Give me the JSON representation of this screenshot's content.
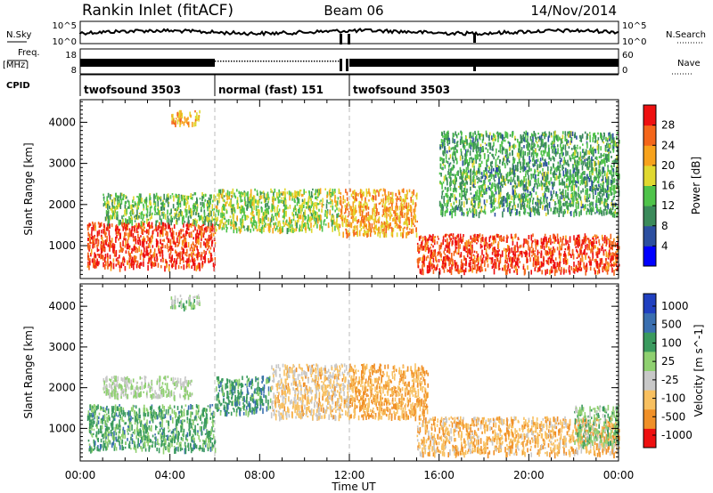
{
  "header": {
    "station": "Rankin Inlet (fitACF)",
    "beam": "Beam 06",
    "date": "14/Nov/2014"
  },
  "strips": {
    "nsky_label": "N.Sky",
    "nsky_ticks": [
      "10^5",
      "10^0"
    ],
    "nsearch_label": "N.Search",
    "nsearch_ticks": [
      "10^5",
      "10^0"
    ],
    "freq_label": "Freq.",
    "freq_unit": "[MHz]",
    "freq_ticks": [
      "18",
      "8"
    ],
    "nave_label": "Nave",
    "nave_ticks": [
      "60",
      "0"
    ],
    "cpid_label": "CPID",
    "cpid_segments": [
      {
        "label": "twofsound 3503",
        "start_hour": 0,
        "end_hour": 6
      },
      {
        "label": "normal (fast) 151",
        "start_hour": 6,
        "end_hour": 12
      },
      {
        "label": "twofsound 3503",
        "start_hour": 12,
        "end_hour": 24
      }
    ]
  },
  "chart_data": [
    {
      "type": "heatmap",
      "title": "",
      "xlabel": "Time UT",
      "ylabel": "Slant Range [km]",
      "xlim": [
        0,
        24
      ],
      "ylim": [
        200,
        4550
      ],
      "x_ticks": [
        "00:00",
        "04:00",
        "08:00",
        "12:00",
        "16:00",
        "20:00",
        "00:00"
      ],
      "y_ticks": [
        1000,
        2000,
        3000,
        4000
      ],
      "colorbar_label": "Power [dB]",
      "colorbar_ticks": [
        4,
        8,
        12,
        16,
        20,
        24,
        28
      ],
      "colorbar_range": [
        0,
        32
      ],
      "colors": [
        "#0000ff",
        "#2c4fa0",
        "#3b8a5a",
        "#4fc34a",
        "#e0d830",
        "#f7a21c",
        "#f4661a",
        "#ee1010"
      ],
      "regions": [
        {
          "t": [
            0.3,
            6.0
          ],
          "r": [
            500,
            1600
          ],
          "value": 28
        },
        {
          "t": [
            1.0,
            6.0
          ],
          "r": [
            1600,
            2300
          ],
          "value": 14
        },
        {
          "t": [
            4.0,
            5.3
          ],
          "r": [
            4000,
            4300
          ],
          "value": 22
        },
        {
          "t": [
            6.0,
            11.5
          ],
          "r": [
            1400,
            2400
          ],
          "value": 16
        },
        {
          "t": [
            11.5,
            15.0
          ],
          "r": [
            1300,
            2400
          ],
          "value": 22
        },
        {
          "t": [
            15.0,
            24.0
          ],
          "r": [
            400,
            1300
          ],
          "value": 28
        },
        {
          "t": [
            16.0,
            24.0
          ],
          "r": [
            1800,
            3800
          ],
          "value": 12
        }
      ]
    },
    {
      "type": "heatmap",
      "title": "",
      "xlabel": "Time UT",
      "ylabel": "Slant Range [km]",
      "xlim": [
        0,
        24
      ],
      "ylim": [
        200,
        4550
      ],
      "x_ticks": [
        "00:00",
        "04:00",
        "08:00",
        "12:00",
        "16:00",
        "20:00",
        "00:00"
      ],
      "y_ticks": [
        1000,
        2000,
        3000,
        4000
      ],
      "colorbar_label": "Velocity [m s^-1]",
      "colorbar_ticks": [
        "1000",
        "500",
        "100",
        "25",
        "-25",
        "-100",
        "-500",
        "-1000"
      ],
      "colorbar_range": [
        -1000,
        1000
      ],
      "colors": [
        "#2040c0",
        "#3a6fb0",
        "#3a9a5e",
        "#8fd070",
        "#c8c8c8",
        "#f8c060",
        "#f09028",
        "#ee1010"
      ],
      "regions": [
        {
          "t": [
            0.3,
            6.0
          ],
          "r": [
            500,
            1600
          ],
          "value": 300
        },
        {
          "t": [
            1.0,
            5.0
          ],
          "r": [
            1800,
            2300
          ],
          "value": 0
        },
        {
          "t": [
            4.0,
            5.3
          ],
          "r": [
            4000,
            4300
          ],
          "value": 60
        },
        {
          "t": [
            6.0,
            8.5
          ],
          "r": [
            1400,
            2300
          ],
          "value": 400
        },
        {
          "t": [
            8.5,
            12.0
          ],
          "r": [
            1300,
            2600
          ],
          "value": -300
        },
        {
          "t": [
            12.0,
            15.5
          ],
          "r": [
            1300,
            2600
          ],
          "value": -500
        },
        {
          "t": [
            15.0,
            24.0
          ],
          "r": [
            400,
            1300
          ],
          "value": -400
        },
        {
          "t": [
            22.0,
            24.0
          ],
          "r": [
            600,
            1600
          ],
          "value": 150
        }
      ]
    }
  ]
}
